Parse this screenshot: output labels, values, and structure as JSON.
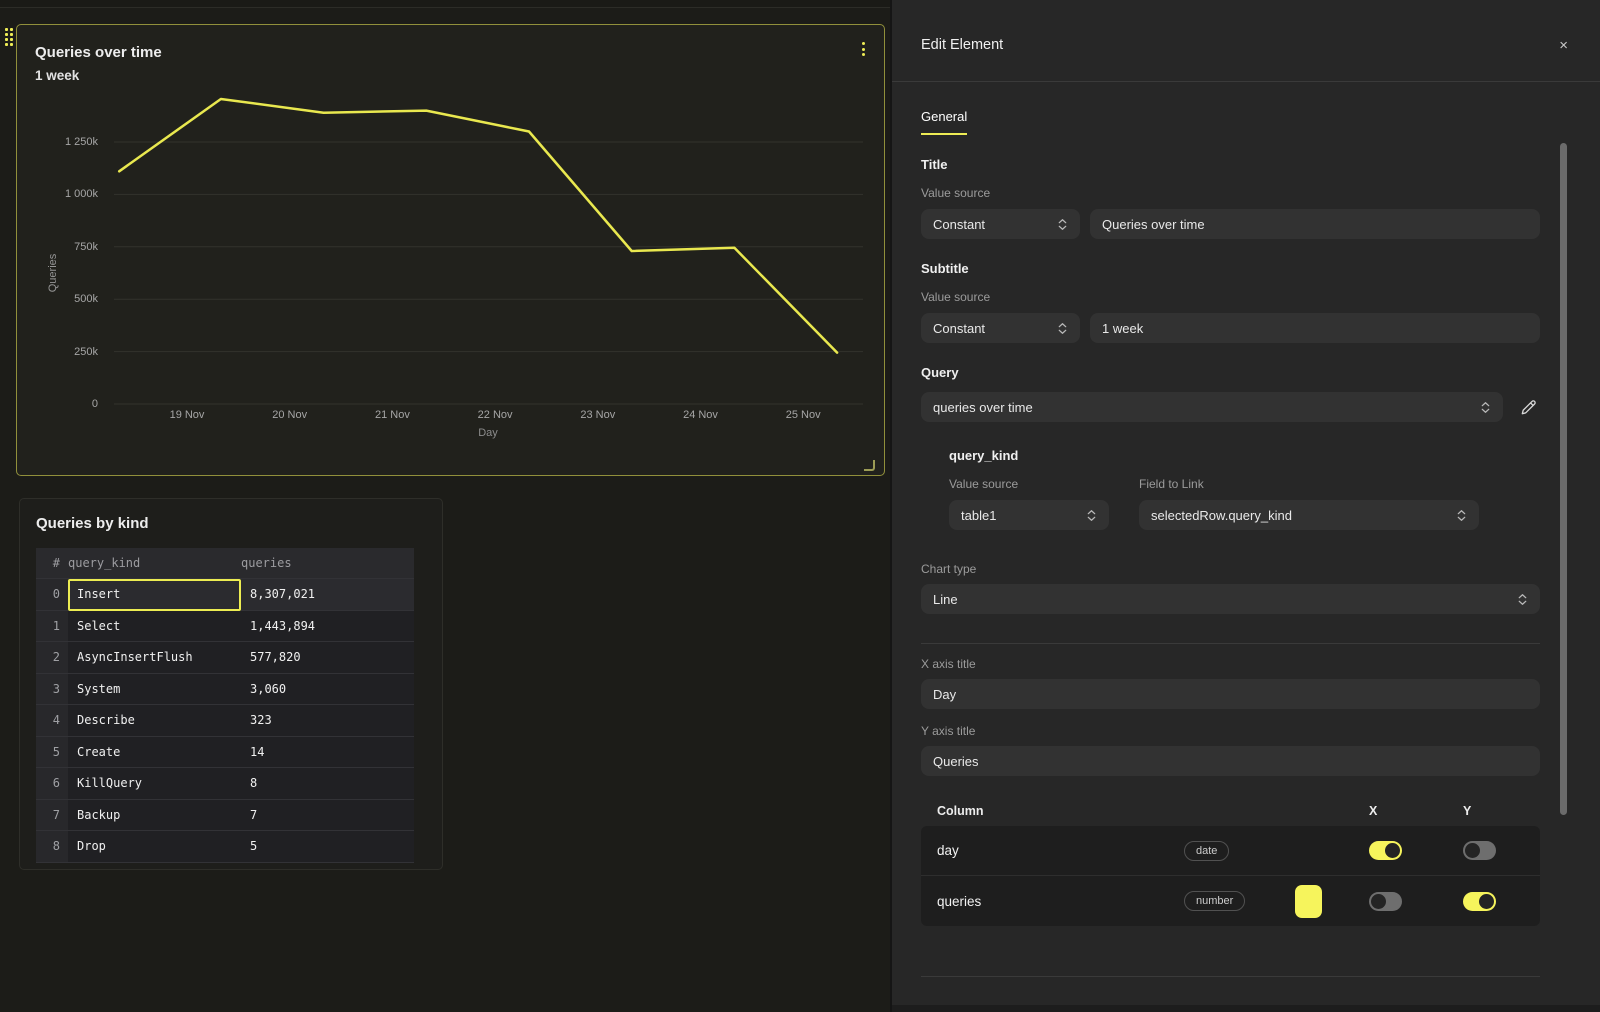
{
  "page": {
    "accent": "#eeec55",
    "left_bg": "#1c1c18",
    "editor_bg": "#272727"
  },
  "chart_data": {
    "type": "line",
    "title": "Queries over time",
    "subtitle": "1 week",
    "xlabel": "Day",
    "ylabel": "Queries",
    "x_tick_labels": [
      "19 Nov",
      "20 Nov",
      "21 Nov",
      "22 Nov",
      "23 Nov",
      "24 Nov",
      "25 Nov"
    ],
    "y_tick_labels": [
      "0",
      "250k",
      "500k",
      "750k",
      "1 000k",
      "1 250k"
    ],
    "y_tick_values": [
      0,
      250000,
      500000,
      750000,
      1000000,
      1250000
    ],
    "ylim": [
      0,
      1520000
    ],
    "grid": "horizontal",
    "legend": "none",
    "grid_color": "#32322d",
    "series": [
      {
        "name": "queries",
        "color": "#e9e84f",
        "points": [
          {
            "day_offset": -0.66,
            "value": 1110000
          },
          {
            "day_offset": 0.33,
            "value": 1455000
          },
          {
            "day_offset": 1.33,
            "value": 1390000
          },
          {
            "day_offset": 2.33,
            "value": 1400000
          },
          {
            "day_offset": 3.33,
            "value": 1300000
          },
          {
            "day_offset": 4.33,
            "value": 730000
          },
          {
            "day_offset": 5.33,
            "value": 745000
          },
          {
            "day_offset": 6.33,
            "value": 245000
          }
        ]
      }
    ]
  },
  "dashboard": {
    "chart_panel": {
      "title": "Queries over time",
      "subtitle": "1 week",
      "menu_icon": "vertical-ellipsis"
    },
    "table_panel": {
      "title": "Queries by kind",
      "columns": [
        "#",
        "query_kind",
        "queries"
      ],
      "rows": [
        [
          "0",
          "Insert",
          "8,307,021"
        ],
        [
          "1",
          "Select",
          "1,443,894"
        ],
        [
          "2",
          "AsyncInsertFlush",
          "577,820"
        ],
        [
          "3",
          "System",
          "3,060"
        ],
        [
          "4",
          "Describe",
          "323"
        ],
        [
          "5",
          "Create",
          "14"
        ],
        [
          "6",
          "KillQuery",
          "8"
        ],
        [
          "7",
          "Backup",
          "7"
        ],
        [
          "8",
          "Drop",
          "5"
        ]
      ],
      "selected_cell": {
        "row_index": 0,
        "column": "query_kind"
      }
    }
  },
  "editor": {
    "header": {
      "title": "Edit Element",
      "close_label": "×"
    },
    "tabs": [
      {
        "label": "General",
        "active": true
      }
    ],
    "title_section": {
      "heading": "Title",
      "value_source_label": "Value source",
      "source": "Constant",
      "value": "Queries over time"
    },
    "subtitle_section": {
      "heading": "Subtitle",
      "value_source_label": "Value source",
      "source": "Constant",
      "value": "1 week"
    },
    "query_section": {
      "heading": "Query",
      "selected_query": "queries over time",
      "edit_icon": "pencil",
      "param": {
        "name": "query_kind",
        "value_source_label": "Value source",
        "value_source": "table1",
        "field_label": "Field to Link",
        "field": "selectedRow.query_kind"
      }
    },
    "chart_type": {
      "label": "Chart type",
      "value": "Line"
    },
    "x_axis": {
      "label": "X axis title",
      "value": "Day"
    },
    "y_axis": {
      "label": "Y axis title",
      "value": "Queries"
    },
    "columns_table": {
      "headers": {
        "column": "Column",
        "x": "X",
        "y": "Y"
      },
      "rows": [
        {
          "name": "day",
          "type_badge": "date",
          "has_swatch": false,
          "x_on": true,
          "y_on": false
        },
        {
          "name": "queries",
          "type_badge": "number",
          "has_swatch": true,
          "swatch_color": "#f6f45c",
          "x_on": false,
          "y_on": true
        }
      ]
    }
  }
}
